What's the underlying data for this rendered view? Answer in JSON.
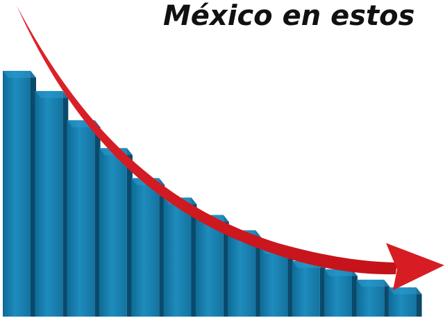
{
  "chart_data": {
    "type": "bar",
    "title": "México en estos",
    "categories": [
      null,
      null,
      null,
      null,
      null,
      null,
      null,
      null,
      null,
      null,
      null,
      null,
      null
    ],
    "values": [
      353,
      324,
      282,
      242,
      199,
      171,
      146,
      124,
      100,
      80,
      68,
      53,
      42
    ],
    "color": "#1679a8",
    "ylim": [
      0,
      360
    ]
  }
}
